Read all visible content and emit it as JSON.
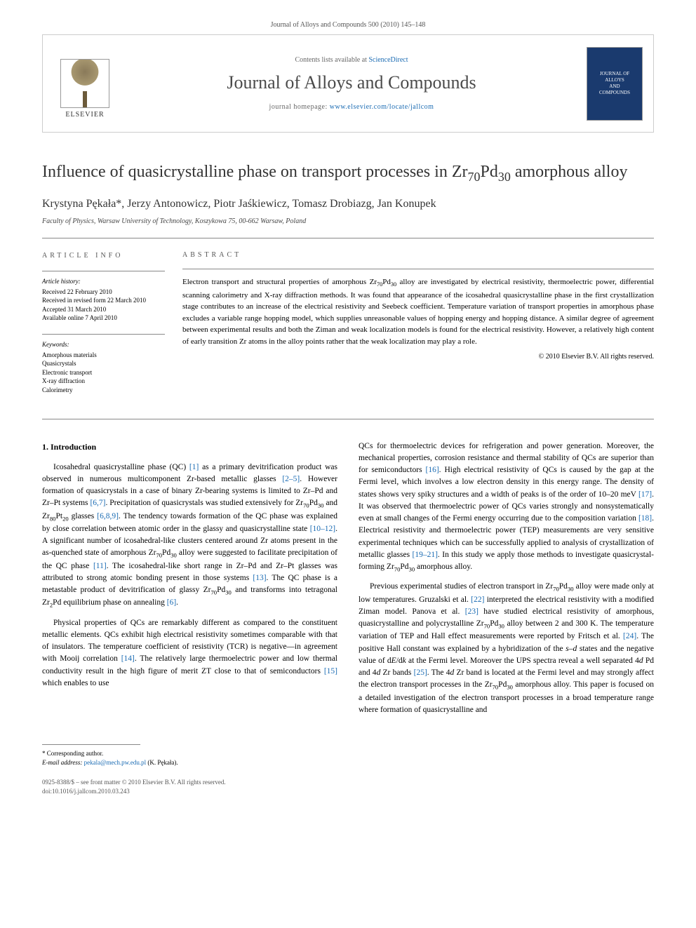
{
  "header": {
    "running_head": "Journal of Alloys and Compounds 500 (2010) 145–148"
  },
  "banner": {
    "elsevier_label": "ELSEVIER",
    "contents_prefix": "Contents lists available at ",
    "contents_link": "ScienceDirect",
    "journal_title": "Journal of Alloys and Compounds",
    "homepage_prefix": "journal homepage: ",
    "homepage_url": "www.elsevier.com/locate/jallcom",
    "cover_line1": "JOURNAL OF",
    "cover_line2": "ALLOYS",
    "cover_line3": "AND",
    "cover_line4": "COMPOUNDS"
  },
  "article": {
    "title_html": "Influence of quasicrystalline phase on transport processes in Zr<sub>70</sub>Pd<sub>30</sub> amorphous alloy",
    "authors": "Krystyna Pękała*, Jerzy Antonowicz, Piotr Jaśkiewicz, Tomasz Drobiazg, Jan Konupek",
    "affiliation": "Faculty of Physics, Warsaw University of Technology, Koszykowa 75, 00-662 Warsaw, Poland"
  },
  "meta": {
    "info_heading": "ARTICLE INFO",
    "history_label": "Article history:",
    "received": "Received 22 February 2010",
    "revised": "Received in revised form 22 March 2010",
    "accepted": "Accepted 31 March 2010",
    "online": "Available online 7 April 2010",
    "keywords_label": "Keywords:",
    "keywords": [
      "Amorphous materials",
      "Quasicrystals",
      "Electronic transport",
      "X-ray diffraction",
      "Calorimetry"
    ]
  },
  "abstract": {
    "heading": "ABSTRACT",
    "text_html": "Electron transport and structural properties of amorphous Zr<sub>70</sub>Pd<sub>30</sub> alloy are investigated by electrical resistivity, thermoelectric power, differential scanning calorimetry and X-ray diffraction methods. It was found that appearance of the icosahedral quasicrystalline phase in the first crystallization stage contributes to an increase of the electrical resistivity and Seebeck coefficient. Temperature variation of transport properties in amorphous phase excludes a variable range hopping model, which supplies unreasonable values of hopping energy and hopping distance. A similar degree of agreement between experimental results and both the Ziman and weak localization models is found for the electrical resistivity. However, a relatively high content of early transition Zr atoms in the alloy points rather that the weak localization may play a role.",
    "copyright": "© 2010 Elsevier B.V. All rights reserved."
  },
  "body": {
    "section_number": "1.",
    "section_title": "Introduction",
    "col1_p1_html": "Icosahedral quasicrystalline phase (QC) <span class=\"ref\">[1]</span> as a primary devitrification product was observed in numerous multicomponent Zr-based metallic glasses <span class=\"ref\">[2–5]</span>. However formation of quasicrystals in a case of binary Zr-bearing systems is limited to Zr–Pd and Zr–Pt systems <span class=\"ref\">[6,7]</span>. Precipitation of quasicrystals was studied extensively for Zr<sub>70</sub>Pd<sub>30</sub> and Zr<sub>80</sub>Pt<sub>20</sub> glasses <span class=\"ref\">[6,8,9]</span>. The tendency towards formation of the QC phase was explained by close correlation between atomic order in the glassy and quasicrystalline state <span class=\"ref\">[10–12]</span>. A significant number of icosahedral-like clusters centered around Zr atoms present in the as-quenched state of amorphous Zr<sub>70</sub>Pd<sub>30</sub> alloy were suggested to facilitate precipitation of the QC phase <span class=\"ref\">[11]</span>. The icosahedral-like short range in Zr–Pd and Zr–Pt glasses was attributed to strong atomic bonding present in those systems <span class=\"ref\">[13]</span>. The QC phase is a metastable product of devitrification of glassy Zr<sub>70</sub>Pd<sub>30</sub> and transforms into tetragonal Zr<sub>2</sub>Pd equilibrium phase on annealing <span class=\"ref\">[6]</span>.",
    "col1_p2_html": "Physical properties of QCs are remarkably different as compared to the constituent metallic elements. QCs exhibit high electrical resistivity sometimes comparable with that of insulators. The temperature coefficient of resistivity (TCR) is negative—in agreement with Mooij correlation <span class=\"ref\">[14]</span>. The relatively large thermoelectric power and low thermal conductivity result in the high figure of merit ZT close to that of semiconductors <span class=\"ref\">[15]</span> which enables to use",
    "col2_p1_html": "QCs for thermoelectric devices for refrigeration and power generation. Moreover, the mechanical properties, corrosion resistance and thermal stability of QCs are superior than for semiconductors <span class=\"ref\">[16]</span>. High electrical resistivity of QCs is caused by the gap at the Fermi level, which involves a low electron density in this energy range. The density of states shows very spiky structures and a width of peaks is of the order of 10–20 meV <span class=\"ref\">[17]</span>. It was observed that thermoelectric power of QCs varies strongly and nonsystematically even at small changes of the Fermi energy occurring due to the composition variation <span class=\"ref\">[18]</span>. Electrical resistivity and thermoelectric power (TEP) measurements are very sensitive experimental techniques which can be successfully applied to analysis of crystallization of metallic glasses <span class=\"ref\">[19–21]</span>. In this study we apply those methods to investigate quasicrystal-forming Zr<sub>70</sub>Pd<sub>30</sub> amorphous alloy.",
    "col2_p2_html": "Previous experimental studies of electron transport in Zr<sub>70</sub>Pd<sub>30</sub> alloy were made only at low temperatures. Gruzalski et al. <span class=\"ref\">[22]</span> interpreted the electrical resistivity with a modified Ziman model. Panova et al. <span class=\"ref\">[23]</span> have studied electrical resistivity of amorphous, quasicrystalline and polycrystalline Zr<sub>70</sub>Pd<sub>30</sub> alloy between 2 and 300 K. The temperature variation of TEP and Hall effect measurements were reported by Fritsch et al. <span class=\"ref\">[24]</span>. The positive Hall constant was explained by a hybridization of the <i>s–d</i> states and the negative value of d<i>E</i>/d<i>k</i> at the Fermi level. Moreover the UPS spectra reveal a well separated 4<i>d</i> Pd and 4<i>d</i> Zr bands <span class=\"ref\">[25]</span>. The 4<i>d</i> Zr band is located at the Fermi level and may strongly affect the electron transport processes in the Zr<sub>70</sub>Pd<sub>30</sub> amorphous alloy. This paper is focused on a detailed investigation of the electron transport processes in a broad temperature range where formation of quasicrystalline and"
  },
  "footer": {
    "corresponding_label": "* Corresponding author.",
    "email_label": "E-mail address:",
    "email": "pekala@mech.pw.edu.pl",
    "email_suffix": "(K. Pękała).",
    "issn_line": "0925-8388/$ – see front matter © 2010 Elsevier B.V. All rights reserved.",
    "doi": "doi:10.1016/j.jallcom.2010.03.243"
  },
  "colors": {
    "link": "#1a6bb3",
    "text": "#000000",
    "muted": "#555555",
    "rule": "#888888",
    "cover_bg": "#1a3a6e"
  }
}
